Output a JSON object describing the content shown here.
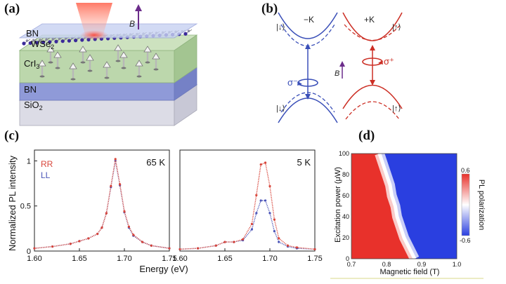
{
  "panels": {
    "a": {
      "label": "(a)",
      "layers": [
        "BN",
        "WSe",
        "CrI",
        "BN",
        "SiO"
      ],
      "subscripts": {
        "wse": "2",
        "cri": "3",
        "sio": "2"
      },
      "field_label": "B"
    },
    "b": {
      "label": "(b)",
      "valley_left": "−K",
      "valley_right": "+K",
      "spin_down": "|↓⟩",
      "spin_up": "|↑⟩",
      "sigma_minus": "σ⁻",
      "sigma_plus": "σ⁺",
      "field_label": "B",
      "colors": {
        "left": "#3a4fb8",
        "right": "#cc2f25"
      }
    },
    "c": {
      "label": "(c)",
      "ylabel": "Normalized PL intensity",
      "xlabel": "Energy (eV)",
      "legend": {
        "rr": "RR",
        "ll": "LL"
      },
      "colors": {
        "rr": "#d8453a",
        "ll": "#4b55b8"
      }
    },
    "d": {
      "label": "(d)",
      "ylabel": "Excitation power (μW)",
      "xlabel": "Magnetic field (T)",
      "colorbar_label": "PL polarization",
      "colorbar_ticks": [
        "0.6",
        "-0.6"
      ],
      "colors": {
        "positive": "#e8312b",
        "negative": "#2a3fe0",
        "zero": "#ffffff"
      }
    }
  },
  "chart_data": [
    {
      "type": "scatter",
      "title": "65 K",
      "xlabel": "Energy (eV)",
      "ylabel": "Normalized PL intensity",
      "xlim": [
        1.6,
        1.75
      ],
      "ylim": [
        0,
        1.12
      ],
      "xticks": [
        "1.60",
        "1.65",
        "1.70",
        "1.75"
      ],
      "yticks": [
        "0",
        "0.5",
        "1"
      ],
      "series": [
        {
          "name": "RR",
          "x": [
            1.6,
            1.62,
            1.64,
            1.65,
            1.66,
            1.67,
            1.675,
            1.68,
            1.685,
            1.69,
            1.695,
            1.7,
            1.705,
            1.71,
            1.72,
            1.73,
            1.75
          ],
          "y": [
            0.03,
            0.05,
            0.08,
            0.11,
            0.14,
            0.19,
            0.26,
            0.42,
            0.72,
            1.02,
            0.74,
            0.44,
            0.27,
            0.18,
            0.1,
            0.06,
            0.03
          ]
        },
        {
          "name": "LL",
          "x": [
            1.6,
            1.62,
            1.64,
            1.65,
            1.66,
            1.67,
            1.675,
            1.68,
            1.685,
            1.69,
            1.695,
            1.7,
            1.705,
            1.71,
            1.72,
            1.73,
            1.75
          ],
          "y": [
            0.03,
            0.05,
            0.08,
            0.11,
            0.14,
            0.19,
            0.26,
            0.42,
            0.71,
            1.0,
            0.73,
            0.43,
            0.26,
            0.17,
            0.1,
            0.06,
            0.03
          ]
        }
      ]
    },
    {
      "type": "scatter",
      "title": "5 K",
      "xlabel": "Energy (eV)",
      "xlim": [
        1.6,
        1.75
      ],
      "ylim": [
        0,
        1.12
      ],
      "xticks": [
        "1.60",
        "1.65",
        "1.70",
        "1.75"
      ],
      "series": [
        {
          "name": "RR",
          "x": [
            1.6,
            1.62,
            1.64,
            1.65,
            1.66,
            1.67,
            1.68,
            1.685,
            1.69,
            1.695,
            1.7,
            1.705,
            1.71,
            1.72,
            1.73,
            1.75
          ],
          "y": [
            0.02,
            0.03,
            0.06,
            0.1,
            0.1,
            0.13,
            0.3,
            0.62,
            0.96,
            0.98,
            0.72,
            0.35,
            0.14,
            0.06,
            0.04,
            0.02
          ]
        },
        {
          "name": "LL",
          "x": [
            1.6,
            1.62,
            1.64,
            1.65,
            1.66,
            1.67,
            1.68,
            1.685,
            1.69,
            1.695,
            1.7,
            1.705,
            1.71,
            1.72,
            1.73,
            1.75
          ],
          "y": [
            0.02,
            0.03,
            0.06,
            0.1,
            0.1,
            0.12,
            0.24,
            0.42,
            0.56,
            0.56,
            0.42,
            0.22,
            0.1,
            0.05,
            0.03,
            0.02
          ]
        }
      ]
    },
    {
      "type": "heatmap",
      "xlabel": "Magnetic field (T)",
      "ylabel": "Excitation power (μW)",
      "xlim": [
        0.7,
        1.0
      ],
      "ylim": [
        0,
        100
      ],
      "xticks": [
        "0.7",
        "0.8",
        "0.9",
        "1.0"
      ],
      "yticks": [
        "0",
        "20",
        "40",
        "60",
        "80",
        "100"
      ],
      "zlim": [
        -0.6,
        0.6
      ],
      "boundary": {
        "power": [
          0,
          10,
          20,
          30,
          40,
          50,
          60,
          70,
          80,
          90,
          100
        ],
        "field": [
          0.88,
          0.865,
          0.85,
          0.84,
          0.83,
          0.825,
          0.815,
          0.81,
          0.8,
          0.79,
          0.78
        ]
      }
    }
  ]
}
